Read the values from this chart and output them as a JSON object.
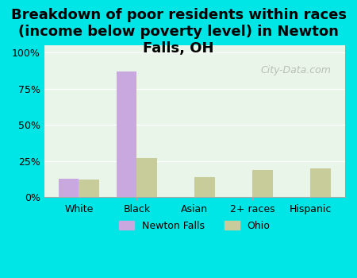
{
  "categories": [
    "White",
    "Black",
    "Asian",
    "2+ races",
    "Hispanic"
  ],
  "newton_falls": [
    13,
    87,
    0,
    0,
    0
  ],
  "ohio": [
    12,
    27,
    14,
    19,
    20
  ],
  "newton_falls_color": "#c9a8e0",
  "ohio_color": "#c8cc9a",
  "background_outer": "#00e5e5",
  "background_inner_top": "#e8f5e8",
  "background_inner_bottom": "#d4ecd4",
  "title": "Breakdown of poor residents within races\n(income below poverty level) in Newton\nFalls, OH",
  "title_fontsize": 13,
  "title_fontweight": "bold",
  "ylabel_ticks": [
    "0%",
    "25%",
    "50%",
    "75%",
    "100%"
  ],
  "ytick_vals": [
    0,
    25,
    50,
    75,
    100
  ],
  "ylim": [
    0,
    105
  ],
  "bar_width": 0.35,
  "legend_newton": "Newton Falls",
  "legend_ohio": "Ohio",
  "watermark": "City-Data.com"
}
